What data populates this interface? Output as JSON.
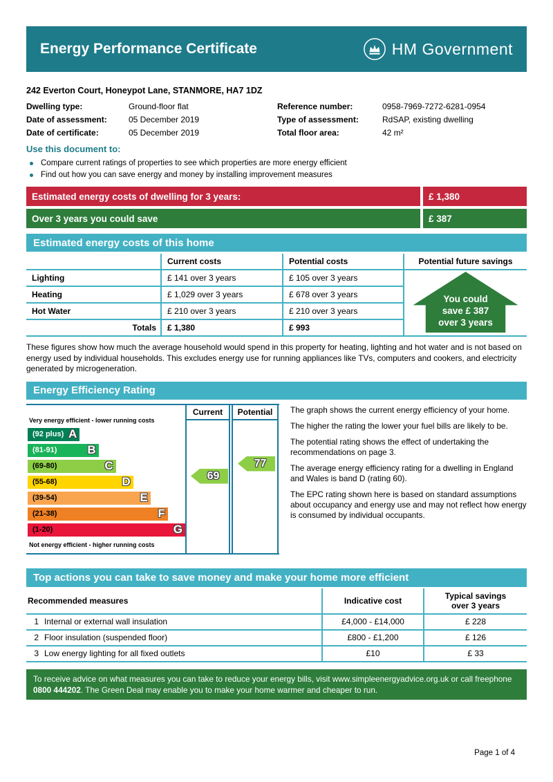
{
  "colors": {
    "header_teal": "#1e7b8a",
    "banner_teal": "#43b1c4",
    "chart_border": "#1a7aa0",
    "red": "#c5273e",
    "green": "#2e7d3b",
    "arrow_green": "#8dce46"
  },
  "header": {
    "title": "Energy Performance Certificate",
    "logo_text": "HM Government"
  },
  "property": {
    "address": "242 Everton Court, Honeypot Lane, STANMORE, HA7 1DZ",
    "left": [
      {
        "label": "Dwelling type:",
        "value": "Ground-floor flat"
      },
      {
        "label": "Date of assessment:",
        "value": "05 December 2019"
      },
      {
        "label": "Date of certificate:",
        "value": "05 December 2019"
      }
    ],
    "right": [
      {
        "label": "Reference number:",
        "value": "0958-7969-7272-6281-0954"
      },
      {
        "label": "Type of assessment:",
        "value": "RdSAP, existing dwelling"
      },
      {
        "label": "Total floor area:",
        "value": "42 m²"
      }
    ]
  },
  "use_document": {
    "heading": "Use this document to:",
    "bullets": [
      "Compare current ratings of properties to see which properties are more energy efficient",
      "Find out how you can save energy and money by installing improvement measures"
    ]
  },
  "banners": [
    {
      "label": "Estimated energy costs of dwelling for 3 years:",
      "value": "£ 1,380",
      "color": "#c5273e"
    },
    {
      "label": "Over 3 years you could save",
      "value": "£ 387",
      "color": "#2e7d3b"
    }
  ],
  "costs_section": {
    "title": "Estimated energy costs of this home",
    "col_current": "Current costs",
    "col_potential": "Potential costs",
    "col_savings": "Potential future savings",
    "rows": [
      {
        "name": "Lighting",
        "current": "£ 141 over 3 years",
        "potential": "£ 105 over 3 years"
      },
      {
        "name": "Heating",
        "current": "£ 1,029 over 3 years",
        "potential": "£ 678 over 3 years"
      },
      {
        "name": "Hot Water",
        "current": "£ 210 over 3 years",
        "potential": "£ 210 over 3 years"
      }
    ],
    "totals": {
      "label": "Totals",
      "current": "£ 1,380",
      "potential": "£ 993"
    },
    "savings_callout": {
      "line1": "You could",
      "line2": "save £ 387",
      "line3": "over 3 years"
    }
  },
  "costs_note": "These figures show how much the average household would spend in this property for heating, lighting and hot water and is not based on energy used by individual households. This excludes energy use for running appliances like TVs, computers and cookers, and electricity generated by microgeneration.",
  "rating_section": {
    "title": "Energy Efficiency Rating",
    "top_label": "Very energy efficient - lower running costs",
    "bottom_label": "Not energy efficient - higher running costs",
    "col_current": "Current",
    "col_potential": "Potential",
    "bands": [
      {
        "range": "(92 plus)",
        "letter": "A",
        "color": "#008054",
        "width_pct": 33
      },
      {
        "range": "(81-91)",
        "letter": "B",
        "color": "#19b459",
        "width_pct": 45
      },
      {
        "range": "(69-80)",
        "letter": "C",
        "color": "#8dce46",
        "width_pct": 56
      },
      {
        "range": "(55-68)",
        "letter": "D",
        "color": "#ffd500",
        "width_pct": 67
      },
      {
        "range": "(39-54)",
        "letter": "E",
        "color": "#f9a550",
        "width_pct": 78
      },
      {
        "range": "(21-38)",
        "letter": "F",
        "color": "#ef8023",
        "width_pct": 89
      },
      {
        "range": "(1-20)",
        "letter": "G",
        "color": "#e9153b",
        "width_pct": 100
      }
    ],
    "current": {
      "value": 69,
      "color": "#8dce46"
    },
    "potential": {
      "value": 77,
      "color": "#8dce46"
    },
    "description": [
      "The graph shows the current energy efficiency of your home.",
      "The higher the rating the lower your fuel bills are likely to be.",
      "The potential rating shows the effect of undertaking the recommendations on page 3.",
      "The average energy efficiency rating for a dwelling in England and Wales is band D (rating 60).",
      "The EPC rating shown here is based on standard assumptions about occupancy and energy use and may not reflect how energy is consumed by individual occupants."
    ]
  },
  "actions_section": {
    "title": "Top actions you can take to save money and make your home more efficient",
    "col_measures": "Recommended measures",
    "col_cost": "Indicative cost",
    "col_savings_line1": "Typical savings",
    "col_savings_line2": "over 3 years",
    "rows": [
      {
        "num": "1",
        "measure": "Internal or external wall insulation",
        "cost": "£4,000 - £14,000",
        "savings": "£ 228"
      },
      {
        "num": "2",
        "measure": "Floor insulation (suspended floor)",
        "cost": "£800 - £1,200",
        "savings": "£ 126"
      },
      {
        "num": "3",
        "measure": "Low energy lighting for all fixed outlets",
        "cost": "£10",
        "savings": "£ 33"
      }
    ]
  },
  "advice_footer": {
    "text_before": "To receive advice on what measures you can take to reduce your energy bills, visit www.simpleenergyadvice.org.uk or call freephone ",
    "phone": "0800 444202",
    "text_after": ". The Green Deal may enable you to make your home warmer and cheaper to run."
  },
  "page_footer": "Page 1 of 4"
}
